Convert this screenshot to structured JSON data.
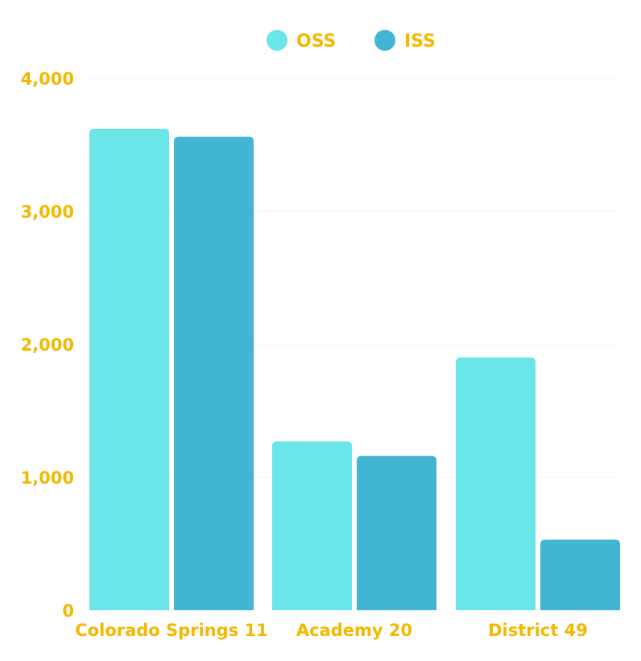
{
  "chart_data": {
    "type": "bar",
    "categories": [
      "Colorado Springs 11",
      "Academy 20",
      "District 49"
    ],
    "series": [
      {
        "name": "OSS",
        "values": [
          3620,
          1270,
          1900
        ],
        "color": "#6AE5E8"
      },
      {
        "name": "ISS",
        "values": [
          3560,
          1160,
          530
        ],
        "color": "#42B5D3"
      }
    ],
    "yticks": [
      "0",
      "1,000",
      "2,000",
      "3,000",
      "4,000"
    ],
    "ytick_values": [
      0,
      1000,
      2000,
      3000,
      4000
    ],
    "ylim": [
      0,
      4000
    ],
    "grid": true,
    "legend": "top-center",
    "label_color": "#F2B900"
  }
}
